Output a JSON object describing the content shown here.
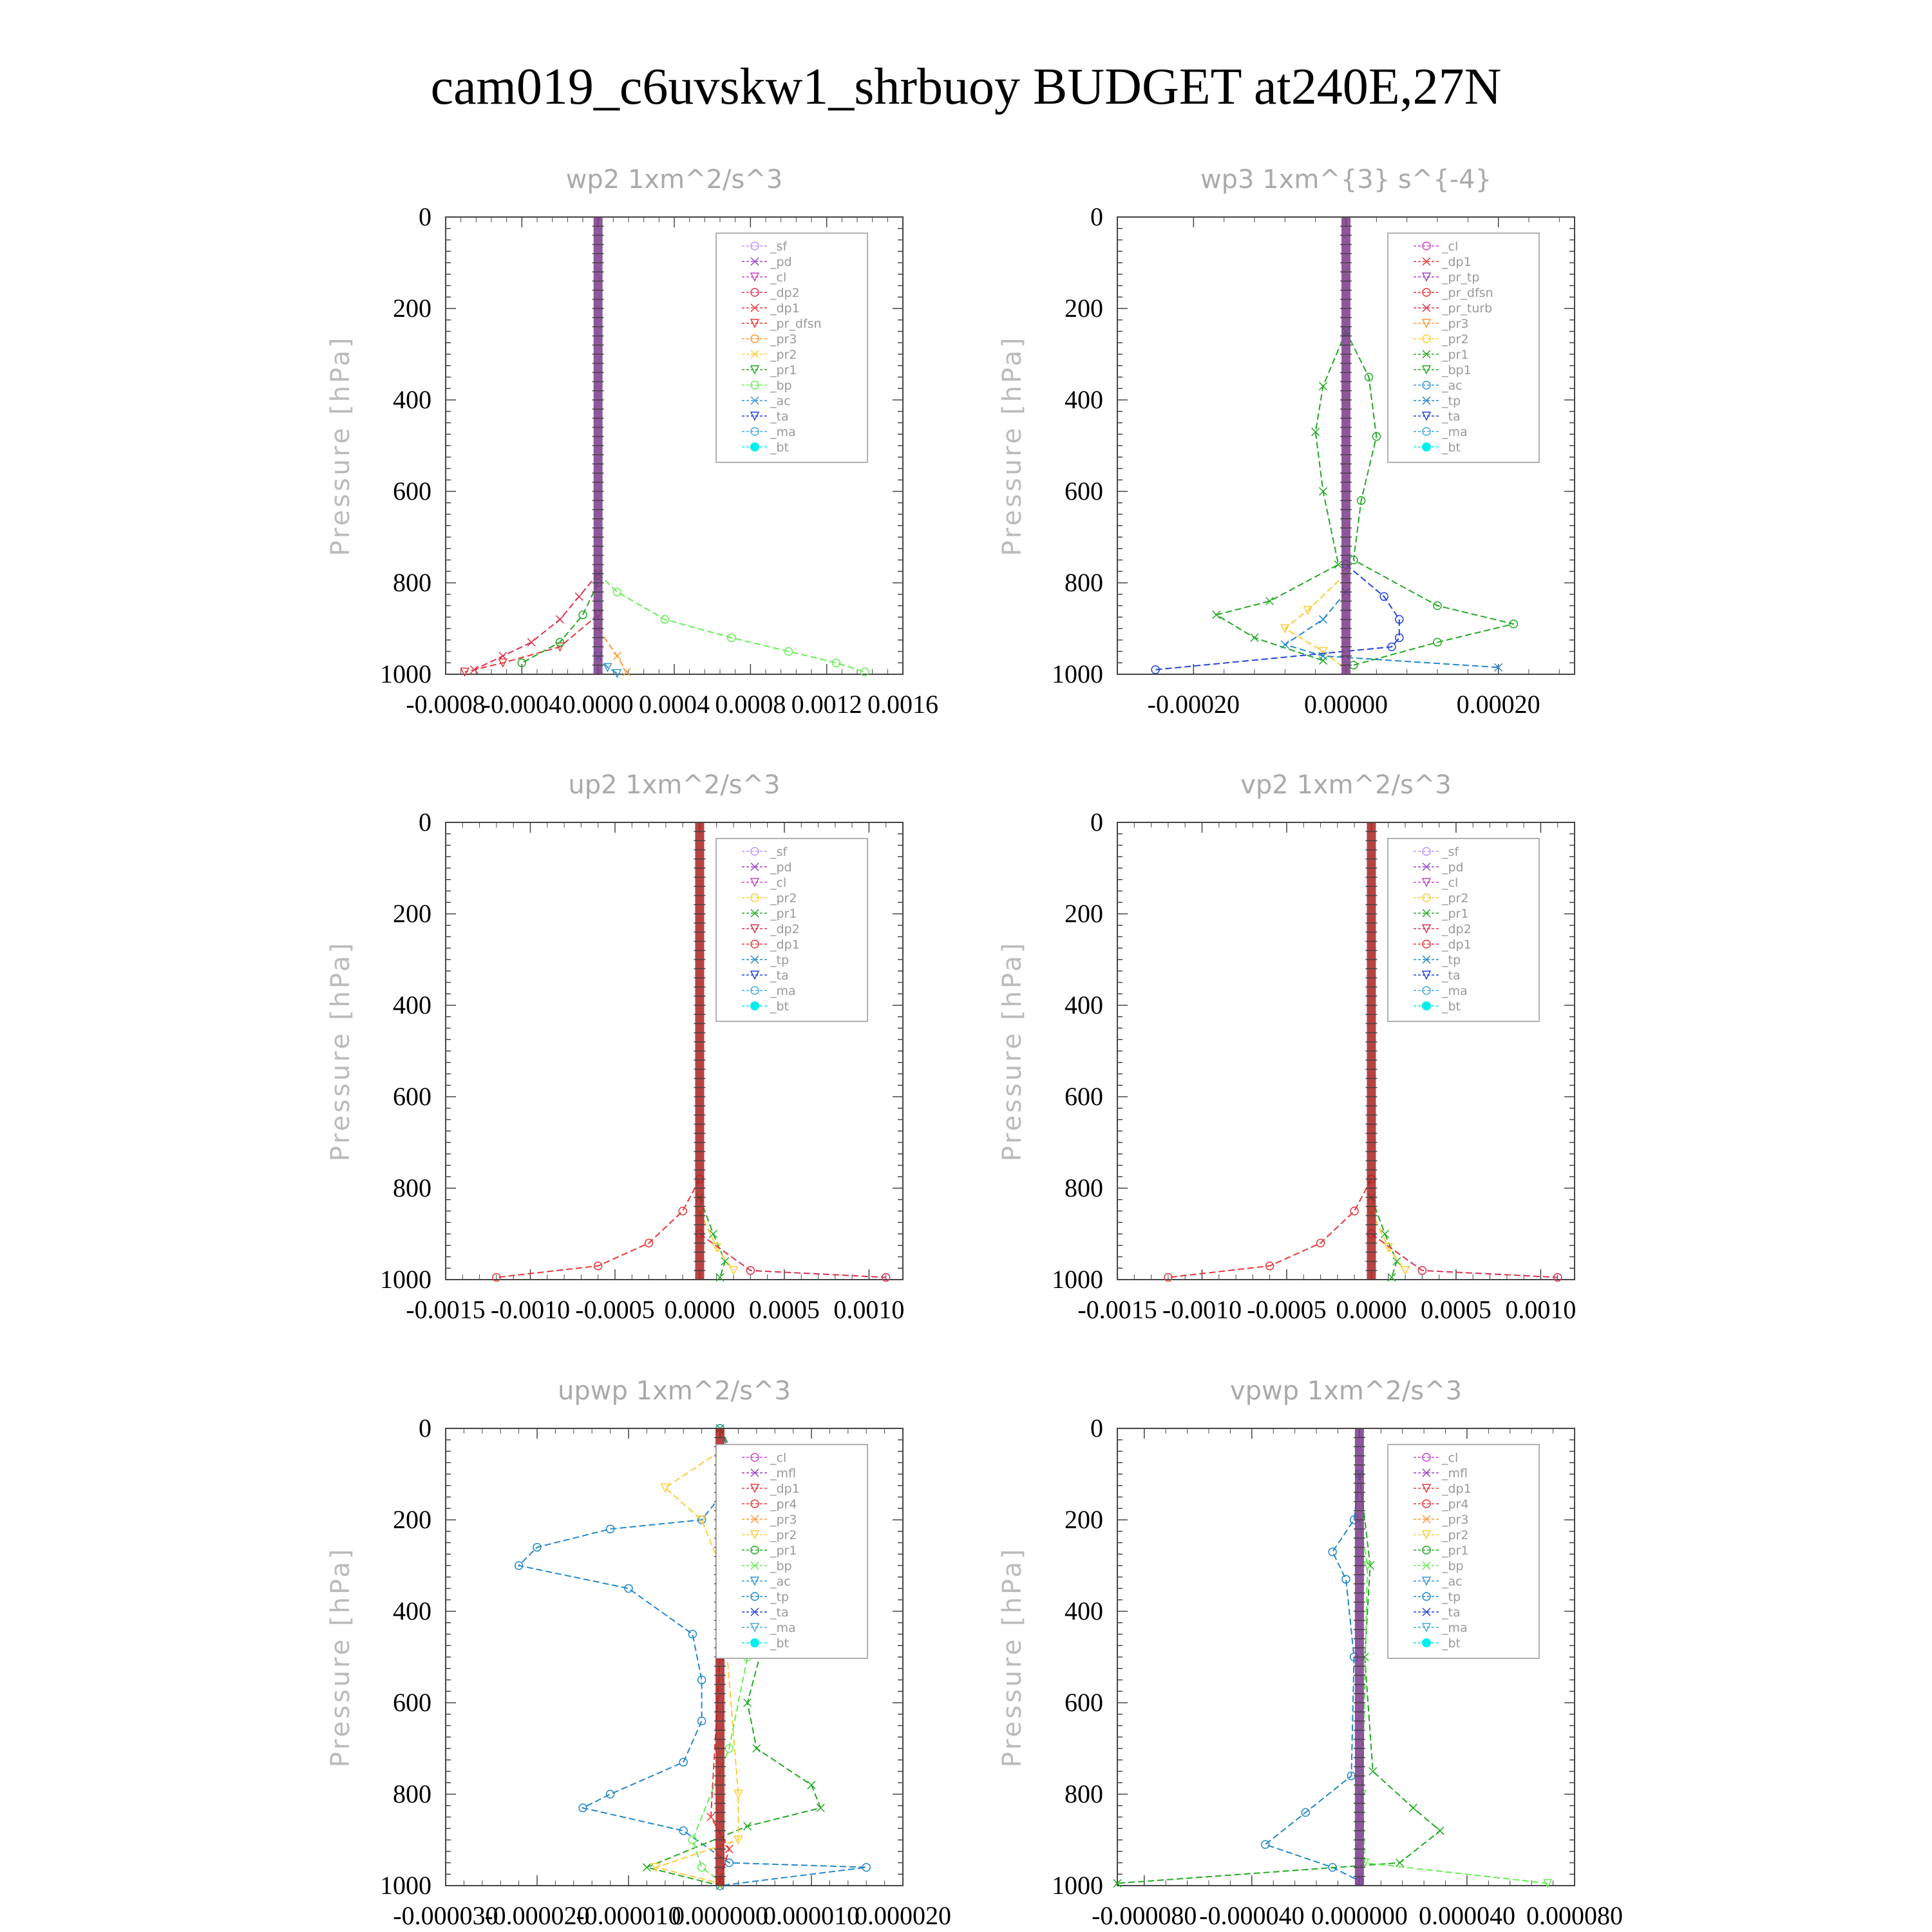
{
  "title": "cam019_c6uvskw1_shrbuoy  BUDGET at240E,27N",
  "colors": {
    "_sf": "#bb99ee",
    "_pd": "#9a40c8",
    "_cl": "#cc44cc",
    "_dp2": "#e03050",
    "_dp1": "#e83838",
    "_pr_dfsn": "#ee3333",
    "_pr3": "#ff9933",
    "_pr2": "#ffcc33",
    "_pr1": "#22aa22",
    "_bp": "#66ee55",
    "_ac": "#3399dd",
    "_ta": "#2244dd",
    "_ma": "#44aadd",
    "_bt": "#00eeee",
    "_tp": "#2288cc",
    "_bp1": "#22aa22",
    "_pr_tp": "#9a40c8",
    "_pr_turb": "#e03050",
    "_pr4": "#e83838",
    "_mfl": "#9a40c8"
  },
  "chart_data": [
    {
      "type": "line",
      "title": "wp2   1xm^2/s^3",
      "ylabel": "Pressure [hPa]",
      "xlim": [
        -0.0008,
        0.0016
      ],
      "xticks": [
        "-0.0008",
        "-0.0004",
        "0.0000",
        "0.0004",
        "0.0008",
        "0.0012",
        "0.0016"
      ],
      "ylim": [
        0,
        1000
      ],
      "yticks": [
        "0",
        "200",
        "400",
        "600",
        "800",
        "1000"
      ],
      "legend_position": "top-right",
      "legend": [
        "_sf",
        "_pd",
        "_cl",
        "_dp2",
        "_dp1",
        "_pr_dfsn",
        "_pr3",
        "_pr2",
        "_pr1",
        "_bp",
        "_ac",
        "_ta",
        "_ma",
        "_bt"
      ],
      "series": [
        {
          "name": "_bp",
          "values": [
            [
              0,
              780
            ],
            [
              0.0001,
              820
            ],
            [
              0.00035,
              880
            ],
            [
              0.0007,
              920
            ],
            [
              0.001,
              950
            ],
            [
              0.00125,
              975
            ],
            [
              0.0014,
              995
            ]
          ]
        },
        {
          "name": "_dp2",
          "values": [
            [
              0,
              780
            ],
            [
              -0.0001,
              830
            ],
            [
              -0.0002,
              880
            ],
            [
              -0.00035,
              930
            ],
            [
              -0.0005,
              960
            ],
            [
              -0.00065,
              990
            ]
          ]
        },
        {
          "name": "_dp1",
          "values": [
            [
              0,
              870
            ],
            [
              -0.0002,
              940
            ],
            [
              -0.0005,
              975
            ],
            [
              -0.0007,
              995
            ]
          ]
        },
        {
          "name": "_pr1",
          "values": [
            [
              0,
              800
            ],
            [
              -8e-05,
              870
            ],
            [
              -0.0002,
              930
            ],
            [
              -0.0004,
              975
            ]
          ]
        },
        {
          "name": "_pr3",
          "values": [
            [
              0,
              900
            ],
            [
              0.0001,
              960
            ],
            [
              0.00015,
              995
            ]
          ]
        },
        {
          "name": "_ac",
          "values": [
            [
              0,
              960
            ],
            [
              5e-05,
              985
            ],
            [
              0.0001,
              998
            ]
          ]
        }
      ]
    },
    {
      "type": "line",
      "title": "wp3   1xm^{3} s^{-4}",
      "ylabel": "Pressure [hPa]",
      "xlim": [
        -0.0003,
        0.0003
      ],
      "xticks": [
        "-0.00020",
        "0.00000",
        "0.00020"
      ],
      "ylim": [
        0,
        1000
      ],
      "yticks": [
        "0",
        "200",
        "400",
        "600",
        "800",
        "1000"
      ],
      "legend_position": "top-right",
      "legend": [
        "_cl",
        "_dp1",
        "_pr_tp",
        "_pr_dfsn",
        "_pr_turb",
        "_pr3",
        "_pr2",
        "_pr1",
        "_bp1",
        "_ac",
        "_tp",
        "_ta",
        "_ma",
        "_bt"
      ],
      "series": [
        {
          "name": "_bp1",
          "values": [
            [
              0,
              250
            ],
            [
              3e-05,
              350
            ],
            [
              4e-05,
              480
            ],
            [
              2e-05,
              620
            ],
            [
              1e-05,
              750
            ],
            [
              0.00012,
              850
            ],
            [
              0.00022,
              890
            ],
            [
              0.00012,
              930
            ],
            [
              1e-05,
              980
            ]
          ]
        },
        {
          "name": "_pr1",
          "values": [
            [
              0,
              250
            ],
            [
              -3e-05,
              370
            ],
            [
              -4e-05,
              470
            ],
            [
              -3e-05,
              600
            ],
            [
              -1e-05,
              760
            ],
            [
              -0.0001,
              840
            ],
            [
              -0.00017,
              870
            ],
            [
              -0.00012,
              920
            ],
            [
              -3e-05,
              970
            ]
          ]
        },
        {
          "name": "_pr2",
          "values": [
            [
              0,
              780
            ],
            [
              -5e-05,
              860
            ],
            [
              -8e-05,
              900
            ],
            [
              -3e-05,
              950
            ],
            [
              0,
              990
            ]
          ]
        },
        {
          "name": "_ta",
          "values": [
            [
              0,
              760
            ],
            [
              5e-05,
              830
            ],
            [
              7e-05,
              880
            ],
            [
              7e-05,
              920
            ],
            [
              6e-05,
              940
            ],
            [
              -0.00025,
              990
            ]
          ]
        },
        {
          "name": "_tp",
          "values": [
            [
              0,
              820
            ],
            [
              -3e-05,
              880
            ],
            [
              -8e-05,
              935
            ],
            [
              -3e-05,
              960
            ],
            [
              0.0002,
              985
            ]
          ]
        }
      ]
    },
    {
      "type": "line",
      "title": "up2   1xm^2/s^3",
      "ylabel": "Pressure [hPa]",
      "xlim": [
        -0.0015,
        0.0012
      ],
      "xticks": [
        "-0.0015",
        "-0.0010",
        "-0.0005",
        "0.0000",
        "0.0005",
        "0.0010"
      ],
      "ylim": [
        0,
        1000
      ],
      "yticks": [
        "0",
        "200",
        "400",
        "600",
        "800",
        "1000"
      ],
      "legend_position": "top-right",
      "legend": [
        "_sf",
        "_pd",
        "_cl",
        "_pr2",
        "_pr1",
        "_dp2",
        "_dp1",
        "_tp",
        "_ta",
        "_ma",
        "_bt"
      ],
      "series": [
        {
          "name": "_dp1",
          "values": [
            [
              0,
              780
            ],
            [
              -0.0001,
              850
            ],
            [
              -0.0003,
              920
            ],
            [
              -0.0006,
              970
            ],
            [
              -0.0012,
              995
            ]
          ]
        },
        {
          "name": "_pr1",
          "values": [
            [
              0,
              820
            ],
            [
              8e-05,
              900
            ],
            [
              0.00015,
              960
            ],
            [
              0.00012,
              995
            ]
          ]
        },
        {
          "name": "_pr2",
          "values": [
            [
              0,
              850
            ],
            [
              0.0001,
              930
            ],
            [
              0.0002,
              980
            ]
          ]
        },
        {
          "name": "_dp2",
          "values": [
            [
              0,
              900
            ],
            [
              0.0003,
              980
            ],
            [
              0.0011,
              995
            ]
          ]
        }
      ]
    },
    {
      "type": "line",
      "title": "vp2   1xm^2/s^3",
      "ylabel": "Pressure [hPa]",
      "xlim": [
        -0.0015,
        0.0012
      ],
      "xticks": [
        "-0.0015",
        "-0.0010",
        "-0.0005",
        "0.0000",
        "0.0005",
        "0.0010"
      ],
      "ylim": [
        0,
        1000
      ],
      "yticks": [
        "0",
        "200",
        "400",
        "600",
        "800",
        "1000"
      ],
      "legend_position": "top-right",
      "legend": [
        "_sf",
        "_pd",
        "_cl",
        "_pr2",
        "_pr1",
        "_dp2",
        "_dp1",
        "_tp",
        "_ta",
        "_ma",
        "_bt"
      ],
      "series": [
        {
          "name": "_dp1",
          "values": [
            [
              0,
              780
            ],
            [
              -0.0001,
              850
            ],
            [
              -0.0003,
              920
            ],
            [
              -0.0006,
              970
            ],
            [
              -0.0012,
              995
            ]
          ]
        },
        {
          "name": "_pr1",
          "values": [
            [
              0,
              820
            ],
            [
              8e-05,
              900
            ],
            [
              0.00015,
              960
            ],
            [
              0.00012,
              995
            ]
          ]
        },
        {
          "name": "_pr2",
          "values": [
            [
              0,
              850
            ],
            [
              0.0001,
              930
            ],
            [
              0.0002,
              980
            ]
          ]
        },
        {
          "name": "_dp2",
          "values": [
            [
              0,
              900
            ],
            [
              0.0003,
              980
            ],
            [
              0.0011,
              995
            ]
          ]
        }
      ]
    },
    {
      "type": "line",
      "title": "upwp   1xm^2/s^3",
      "ylabel": "Pressure [hPa]",
      "xlim": [
        -3e-05,
        2e-05
      ],
      "xticks": [
        "-0.000030",
        "-0.000020",
        "-0.000010",
        "0.000000",
        "0.000010",
        "0.000020"
      ],
      "ylim": [
        0,
        1000
      ],
      "yticks": [
        "0",
        "200",
        "400",
        "600",
        "800",
        "1000"
      ],
      "legend_position": "top-right",
      "legend": [
        "_cl",
        "_mfl",
        "_dp1",
        "_pr4",
        "_pr3",
        "_pr2",
        "_pr1",
        "_bp",
        "_ac",
        "_tp",
        "_ta",
        "_ma",
        "_bt"
      ],
      "series": [
        {
          "name": "_tp",
          "values": [
            [
              0,
              0
            ],
            [
              2e-06,
              100
            ],
            [
              -2e-06,
              200
            ],
            [
              -1.2e-05,
              220
            ],
            [
              -2e-05,
              260
            ],
            [
              -2.2e-05,
              300
            ],
            [
              -1e-05,
              350
            ],
            [
              -3e-06,
              450
            ],
            [
              -2e-06,
              550
            ],
            [
              -2e-06,
              640
            ],
            [
              -4e-06,
              730
            ],
            [
              -1.2e-05,
              800
            ],
            [
              -1.5e-05,
              830
            ],
            [
              -4e-06,
              880
            ],
            [
              1e-06,
              950
            ],
            [
              1.6e-05,
              960
            ],
            [
              0,
              1000
            ]
          ]
        },
        {
          "name": "_pr1",
          "values": [
            [
              0,
              0
            ],
            [
              4e-06,
              150
            ],
            [
              1.1e-05,
              270
            ],
            [
              9e-06,
              350
            ],
            [
              5e-06,
              450
            ],
            [
              3e-06,
              600
            ],
            [
              4e-06,
              700
            ],
            [
              1e-05,
              780
            ],
            [
              1.1e-05,
              830
            ],
            [
              3e-06,
              870
            ],
            [
              -8e-06,
              960
            ],
            [
              0,
              1000
            ]
          ]
        },
        {
          "name": "_pr2",
          "values": [
            [
              0,
              50
            ],
            [
              -6e-06,
              130
            ],
            [
              -2e-06,
              200
            ],
            [
              0,
              300
            ],
            [
              2e-06,
              800
            ],
            [
              2e-06,
              900
            ],
            [
              -7e-06,
              960
            ],
            [
              0,
              995
            ]
          ]
        },
        {
          "name": "_bp",
          "values": [
            [
              0,
              100
            ],
            [
              6e-06,
              300
            ],
            [
              3e-06,
              500
            ],
            [
              1e-06,
              700
            ],
            [
              -3e-06,
              900
            ],
            [
              -2e-06,
              960
            ],
            [
              0,
              990
            ]
          ]
        },
        {
          "name": "_pr4",
          "values": [
            [
              0,
              150
            ],
            [
              2e-06,
              300
            ],
            [
              0,
              500
            ],
            [
              -1e-06,
              850
            ],
            [
              1e-06,
              920
            ],
            [
              0,
              990
            ]
          ]
        }
      ]
    },
    {
      "type": "line",
      "title": "vpwp   1xm^2/s^3",
      "ylabel": "Pressure [hPa]",
      "xlim": [
        -9e-05,
        8e-05
      ],
      "xticks": [
        "-0.000080",
        "-0.000040",
        "0.000000",
        "0.000040",
        "0.000080"
      ],
      "ylim": [
        0,
        1000
      ],
      "yticks": [
        "0",
        "200",
        "400",
        "600",
        "800",
        "1000"
      ],
      "legend_position": "top-right",
      "legend": [
        "_cl",
        "_mfl",
        "_dp1",
        "_pr4",
        "_pr3",
        "_pr2",
        "_pr1",
        "_bp",
        "_ac",
        "_tp",
        "_ta",
        "_ma",
        "_bt"
      ],
      "series": [
        {
          "name": "_tp",
          "values": [
            [
              0,
              100
            ],
            [
              -2e-06,
              200
            ],
            [
              -1e-05,
              270
            ],
            [
              -5e-06,
              330
            ],
            [
              -2e-06,
              500
            ],
            [
              -3e-06,
              760
            ],
            [
              -2e-05,
              840
            ],
            [
              -3.5e-05,
              910
            ],
            [
              -1e-05,
              960
            ],
            [
              0,
              990
            ]
          ]
        },
        {
          "name": "_pr1",
          "values": [
            [
              0,
              100
            ],
            [
              4e-06,
              300
            ],
            [
              2e-06,
              500
            ],
            [
              5e-06,
              750
            ],
            [
              2e-05,
              830
            ],
            [
              3e-05,
              880
            ],
            [
              1.5e-05,
              950
            ],
            [
              -9e-05,
              995
            ]
          ]
        },
        {
          "name": "_bp",
          "values": [
            [
              0,
              200
            ],
            [
              3e-06,
              300
            ],
            [
              1e-06,
              800
            ],
            [
              2e-06,
              950
            ],
            [
              7e-05,
              995
            ]
          ]
        }
      ]
    }
  ]
}
